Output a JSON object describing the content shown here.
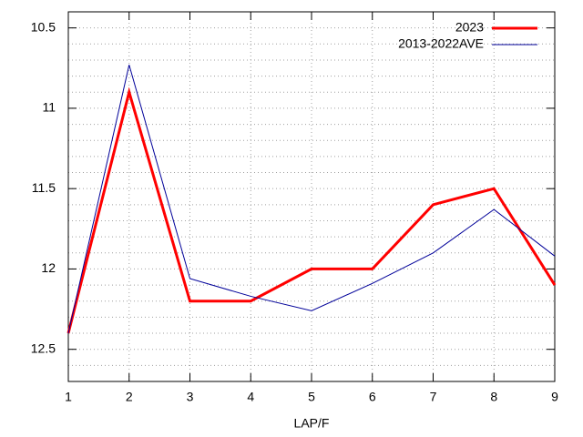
{
  "chart_data": {
    "type": "line",
    "x_label": "LAP/F",
    "x": [
      1,
      2,
      3,
      4,
      5,
      6,
      7,
      8,
      9
    ],
    "series": [
      {
        "name": "2023",
        "color": "#ff0000",
        "values": [
          12.4,
          10.9,
          12.2,
          12.2,
          12.0,
          12.0,
          11.6,
          11.5,
          12.1
        ]
      },
      {
        "name": "2013-2022AVE",
        "color": "#000099",
        "values": [
          12.4,
          10.73,
          12.06,
          12.17,
          12.26,
          12.09,
          11.9,
          11.63,
          11.92
        ]
      }
    ],
    "xlim": [
      1,
      9
    ],
    "xticks": [
      1,
      2,
      3,
      4,
      5,
      6,
      7,
      8,
      9
    ],
    "ylim": [
      12.7,
      10.4
    ],
    "yticks": [
      10.5,
      11,
      11.5,
      12,
      12.5
    ],
    "grid": true,
    "minor_grid_subdivisions": 5,
    "legend": "top-right"
  }
}
